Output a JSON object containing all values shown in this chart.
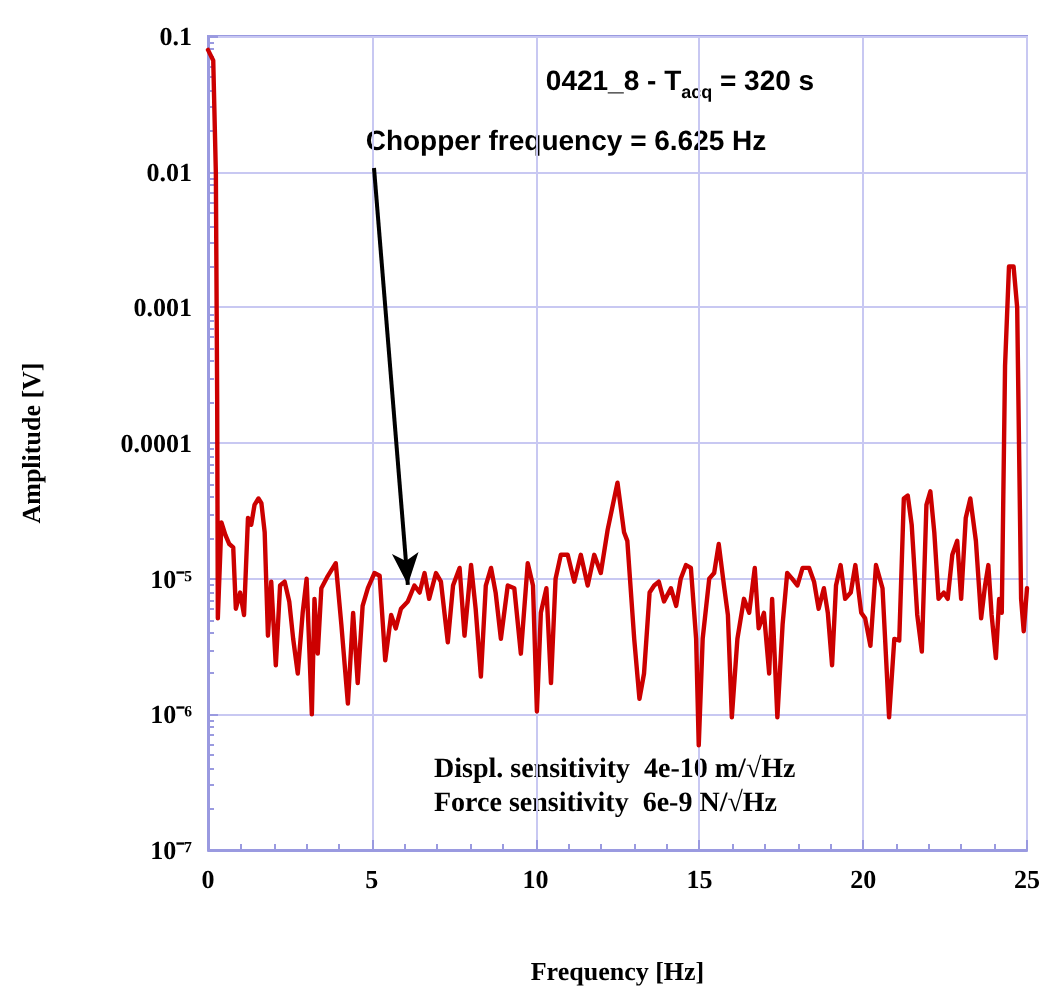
{
  "chart_data": {
    "type": "line",
    "xlabel": "Frequency [Hz]",
    "ylabel": "Amplitude [V]",
    "log": "y",
    "grid": true,
    "marker": "none",
    "line_style": "solid",
    "annotations": [
      "0421_8 - T$_{acq}$ = 320 s",
      {
        "text": "Chopper frequency = 6.625 Hz",
        "x": 6.1,
        "y": 9e-06
      },
      "Displ. sensitivity  4e-10 m/√Hz",
      "Force sensitivity  6e-9 N/√Hz"
    ],
    "xlim": [
      0,
      25
    ],
    "xticks": [
      0,
      5,
      10,
      15,
      20,
      25
    ],
    "ylim": [
      1e-07,
      0.1
    ],
    "yticks": [
      0.1,
      0.01,
      0.001,
      0.0001,
      {
        "value": 1e-05,
        "label": "10⁻⁵"
      },
      {
        "value": 1e-06,
        "label": "10⁻⁶"
      },
      {
        "value": 1e-07,
        "label": "10⁻⁷"
      }
    ],
    "series": [
      {
        "color": "#cc0000",
        "x": [
          0,
          0.16,
          0.24,
          0.28,
          0.3,
          0.41,
          0.53,
          0.65,
          0.77,
          0.85,
          0.98,
          1.1,
          1.22,
          1.32,
          1.42,
          1.54,
          1.63,
          1.73,
          1.83,
          1.93,
          2.07,
          2.2,
          2.34,
          2.48,
          2.6,
          2.74,
          2.89,
          3.01,
          3.17,
          3.25,
          3.35,
          3.46,
          3.66,
          3.9,
          4.07,
          4.27,
          4.43,
          4.57,
          4.72,
          4.88,
          5.08,
          5.24,
          5.41,
          5.59,
          5.73,
          5.89,
          6.1,
          6.3,
          6.46,
          6.61,
          6.75,
          6.96,
          7.11,
          7.32,
          7.48,
          7.68,
          7.83,
          8.03,
          8.17,
          8.33,
          8.48,
          8.64,
          8.78,
          8.94,
          9.15,
          9.35,
          9.55,
          9.76,
          9.92,
          10.04,
          10.16,
          10.33,
          10.47,
          10.61,
          10.77,
          10.98,
          11.18,
          11.38,
          11.59,
          11.79,
          11.99,
          12.2,
          12.5,
          12.7,
          12.8,
          13.01,
          13.17,
          13.31,
          13.48,
          13.62,
          13.76,
          13.92,
          14.13,
          14.29,
          14.43,
          14.59,
          14.74,
          14.9,
          14.98,
          15.1,
          15.3,
          15.45,
          15.59,
          15.75,
          15.87,
          15.99,
          16.16,
          16.36,
          16.52,
          16.69,
          16.81,
          16.97,
          17.13,
          17.22,
          17.38,
          17.54,
          17.68,
          17.83,
          17.99,
          18.15,
          18.35,
          18.5,
          18.64,
          18.8,
          18.92,
          19.05,
          19.17,
          19.31,
          19.45,
          19.62,
          19.76,
          19.94,
          20.06,
          20.22,
          20.39,
          20.59,
          20.79,
          20.95,
          21.1,
          21.24,
          21.36,
          21.48,
          21.65,
          21.79,
          21.93,
          22.05,
          22.17,
          22.3,
          22.46,
          22.58,
          22.72,
          22.87,
          22.99,
          23.13,
          23.27,
          23.44,
          23.6,
          23.72,
          23.82,
          23.92,
          24.05,
          24.15,
          24.23,
          24.33,
          24.45,
          24.59,
          24.7,
          24.82,
          24.9,
          25.0
        ],
        "values": [
          0.079,
          0.066,
          0.0098,
          0.00021,
          5.1e-06,
          2.6e-05,
          2.1e-05,
          1.8e-05,
          1.7e-05,
          6e-06,
          7.9e-06,
          5.4e-06,
          2.8e-05,
          2.5e-05,
          3.5e-05,
          3.9e-05,
          3.6e-05,
          2.2e-05,
          3.8e-06,
          9.5e-06,
          2.3e-06,
          8.9e-06,
          9.5e-06,
          6.8e-06,
          3.6e-06,
          2e-06,
          5.6e-06,
          1e-05,
          1e-06,
          7.1e-06,
          2.8e-06,
          8.5e-06,
          1.05e-05,
          1.3e-05,
          4.6e-06,
          1.2e-06,
          5.6e-06,
          1.7e-06,
          6.3e-06,
          8.5e-06,
          1.1e-05,
          1.05e-05,
          2.5e-06,
          5.4e-06,
          4.3e-06,
          6e-06,
          6.8e-06,
          8.9e-06,
          7.9e-06,
          1.1e-05,
          7.1e-06,
          1.1e-05,
          9.5e-06,
          3.4e-06,
          8.9e-06,
          1.2e-05,
          3.8e-06,
          1.26e-05,
          6e-06,
          1.9e-06,
          8.9e-06,
          1.2e-05,
          7.9e-06,
          3.6e-06,
          8.9e-06,
          8.5e-06,
          2.8e-06,
          1.3e-05,
          8.9e-06,
          1.05e-06,
          5.6e-06,
          8.5e-06,
          1.7e-06,
          1e-05,
          1.5e-05,
          1.5e-05,
          9.5e-06,
          1.5e-05,
          8.9e-06,
          1.5e-05,
          1.1e-05,
          2.3e-05,
          5.1e-05,
          2.2e-05,
          1.9e-05,
          3.6e-06,
          1.3e-06,
          2e-06,
          7.9e-06,
          8.9e-06,
          9.5e-06,
          6.8e-06,
          8.5e-06,
          6.3e-06,
          1e-05,
          1.26e-05,
          1.2e-05,
          3.6e-06,
          5.9e-07,
          3.6e-06,
          1e-05,
          1.1e-05,
          1.8e-05,
          8.9e-06,
          5.4e-06,
          9.5e-07,
          3.6e-06,
          7.1e-06,
          5.6e-06,
          1.2e-05,
          4.3e-06,
          5.6e-06,
          2e-06,
          7.1e-06,
          9.5e-07,
          4.6e-06,
          1.1e-05,
          1e-05,
          8.9e-06,
          1.2e-05,
          1.2e-05,
          9.5e-06,
          6e-06,
          8.5e-06,
          5.6e-06,
          2.3e-06,
          8.9e-06,
          1.26e-05,
          7.1e-06,
          7.9e-06,
          1.26e-05,
          5.6e-06,
          5.1e-06,
          3.2e-06,
          1.26e-05,
          8.5e-06,
          9.5e-07,
          3.6e-06,
          3.5e-06,
          3.9e-05,
          4.1e-05,
          2.5e-05,
          5.4e-06,
          2.9e-06,
          3.5e-05,
          4.4e-05,
          2.2e-05,
          7.1e-06,
          7.9e-06,
          7.1e-06,
          1.5e-05,
          1.9e-05,
          7.1e-06,
          2.8e-05,
          3.9e-05,
          1.9e-05,
          5.1e-06,
          8.9e-06,
          1.26e-05,
          5.4e-06,
          2.6e-06,
          7.1e-06,
          5.6e-06,
          0.00037,
          0.002,
          0.002,
          0.001,
          7.1e-06,
          4.1e-06,
          8.5e-06
        ]
      }
    ]
  }
}
